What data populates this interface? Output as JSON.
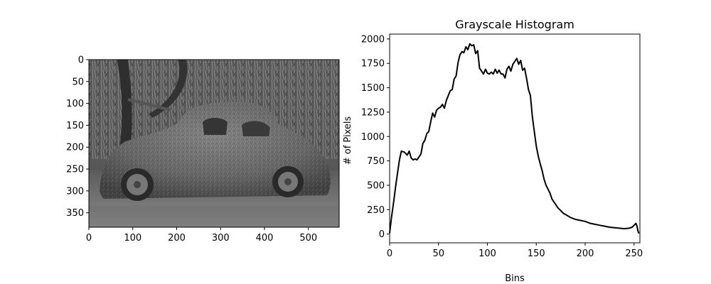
{
  "chart_data": [
    {
      "type": "image",
      "title": "",
      "xlabel": "",
      "ylabel": "",
      "xlim": [
        0,
        570
      ],
      "ylim": [
        383,
        0
      ],
      "xticks": [
        0,
        100,
        200,
        300,
        400,
        500
      ],
      "yticks": [
        0,
        50,
        100,
        150,
        200,
        250,
        300,
        350
      ],
      "colormap": "grayscale",
      "image_description": "grayscale photo of a car covered in moss under willow trees"
    },
    {
      "type": "line",
      "title": "Grayscale Histogram",
      "xlabel": "Bins",
      "ylabel": "# of Pixels",
      "xlim": [
        0,
        256
      ],
      "ylim": [
        -90,
        2050
      ],
      "xticks": [
        0,
        50,
        100,
        150,
        200,
        250
      ],
      "yticks": [
        0,
        250,
        500,
        750,
        1000,
        1250,
        1500,
        1750,
        2000
      ],
      "grid": false,
      "series": [
        {
          "color": "#000000",
          "x": [
            0,
            2,
            4,
            6,
            8,
            10,
            12,
            15,
            18,
            20,
            22,
            24,
            26,
            28,
            30,
            32,
            34,
            36,
            38,
            40,
            42,
            44,
            46,
            48,
            50,
            52,
            54,
            56,
            58,
            60,
            62,
            64,
            66,
            68,
            70,
            72,
            74,
            76,
            78,
            80,
            82,
            84,
            86,
            88,
            90,
            92,
            94,
            96,
            98,
            100,
            102,
            104,
            106,
            108,
            110,
            112,
            114,
            116,
            118,
            120,
            122,
            124,
            126,
            128,
            130,
            132,
            134,
            136,
            138,
            140,
            142,
            144,
            146,
            148,
            150,
            152,
            154,
            156,
            158,
            160,
            162,
            164,
            166,
            168,
            170,
            172,
            174,
            176,
            178,
            180,
            185,
            190,
            195,
            200,
            205,
            210,
            215,
            220,
            225,
            230,
            235,
            240,
            245,
            248,
            250,
            252,
            253,
            254,
            255
          ],
          "y": [
            10,
            180,
            320,
            480,
            620,
            760,
            850,
            840,
            810,
            850,
            780,
            760,
            770,
            760,
            790,
            820,
            930,
            960,
            1030,
            1050,
            1150,
            1240,
            1200,
            1270,
            1290,
            1300,
            1330,
            1290,
            1370,
            1420,
            1470,
            1480,
            1590,
            1620,
            1760,
            1840,
            1870,
            1860,
            1920,
            1890,
            1950,
            1930,
            1940,
            1850,
            1880,
            1700,
            1670,
            1640,
            1690,
            1650,
            1640,
            1660,
            1640,
            1690,
            1650,
            1680,
            1640,
            1640,
            1600,
            1690,
            1720,
            1670,
            1740,
            1770,
            1800,
            1740,
            1780,
            1680,
            1700,
            1600,
            1480,
            1420,
            1200,
            1050,
            900,
            800,
            720,
            650,
            560,
            500,
            460,
            420,
            360,
            330,
            300,
            270,
            250,
            230,
            210,
            200,
            170,
            150,
            140,
            130,
            110,
            100,
            90,
            80,
            70,
            65,
            60,
            55,
            60,
            70,
            90,
            110,
            80,
            30,
            5
          ]
        }
      ]
    }
  ]
}
